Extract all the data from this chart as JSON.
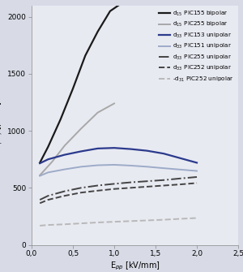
{
  "background_color": "#d8dbe6",
  "plot_bg_color": "#e8eaf2",
  "xlim": [
    0,
    2.5
  ],
  "ylim": [
    0,
    2100
  ],
  "xlabel": "E$_{pp}$ [kV/mm]",
  "ylabel": "d$_{(GS)}$ [pm/V]",
  "xticks": [
    0.0,
    0.5,
    1.0,
    1.5,
    2.0,
    2.5
  ],
  "yticks": [
    0,
    500,
    1000,
    1500,
    2000
  ],
  "xtick_labels": [
    "0,0",
    "0,5",
    "1,0",
    "1,5",
    "2,0",
    "2,5"
  ],
  "ytick_labels": [
    "0",
    "500",
    "1000",
    "1500",
    "2000"
  ],
  "series": [
    {
      "label": "d$_{15}$ PIC155 bipolar",
      "color": "#1a1a1a",
      "linestyle": "-",
      "linewidth": 1.6,
      "x": [
        0.1,
        0.2,
        0.35,
        0.5,
        0.65,
        0.8,
        0.95,
        1.05
      ],
      "y": [
        720,
        860,
        1100,
        1370,
        1660,
        1870,
        2050,
        2100
      ]
    },
    {
      "label": "d$_{15}$ PIC255 bipolar",
      "color": "#a8a8a8",
      "linestyle": "-",
      "linewidth": 1.4,
      "x": [
        0.1,
        0.25,
        0.4,
        0.6,
        0.8,
        1.0
      ],
      "y": [
        610,
        730,
        870,
        1020,
        1160,
        1240
      ]
    },
    {
      "label": "d$_{33}$ PIC153 unipolar",
      "color": "#2b3a8c",
      "linestyle": "-",
      "linewidth": 1.6,
      "x": [
        0.1,
        0.2,
        0.4,
        0.6,
        0.8,
        1.0,
        1.2,
        1.4,
        1.6,
        1.8,
        2.0
      ],
      "y": [
        715,
        750,
        790,
        820,
        845,
        850,
        840,
        825,
        800,
        760,
        720
      ]
    },
    {
      "label": "d$_{33}$ PIC151 unipolar",
      "color": "#9dabc8",
      "linestyle": "-",
      "linewidth": 1.4,
      "x": [
        0.1,
        0.2,
        0.4,
        0.6,
        0.8,
        1.0,
        1.2,
        1.4,
        1.6,
        1.8,
        2.0
      ],
      "y": [
        605,
        635,
        662,
        685,
        698,
        702,
        695,
        685,
        672,
        660,
        648
      ]
    },
    {
      "label": "d$_{33}$ PIC255 unipolar",
      "color": "#444444",
      "linestyle": "-.",
      "linewidth": 1.4,
      "x": [
        0.1,
        0.2,
        0.4,
        0.6,
        0.8,
        1.0,
        1.2,
        1.4,
        1.6,
        1.8,
        2.0
      ],
      "y": [
        395,
        430,
        470,
        500,
        520,
        535,
        548,
        558,
        568,
        582,
        595
      ]
    },
    {
      "label": "d$_{33}$ PIC252 unipolar",
      "color": "#444444",
      "linestyle": "--",
      "linewidth": 1.4,
      "x": [
        0.1,
        0.2,
        0.4,
        0.6,
        0.8,
        1.0,
        1.2,
        1.4,
        1.6,
        1.8,
        2.0
      ],
      "y": [
        365,
        395,
        430,
        458,
        475,
        490,
        500,
        510,
        520,
        530,
        542
      ]
    },
    {
      "label": "-d$_{31}$ PIC252 unipolar",
      "color": "#b8b8b8",
      "linestyle": "--",
      "linewidth": 1.4,
      "x": [
        0.1,
        0.2,
        0.4,
        0.6,
        0.8,
        1.0,
        1.2,
        1.4,
        1.6,
        1.8,
        2.0
      ],
      "y": [
        168,
        174,
        180,
        188,
        196,
        202,
        208,
        214,
        220,
        228,
        235
      ]
    }
  ],
  "legend": [
    {
      "label": "d$_{15}$ PIC155 bipolar",
      "color": "#1a1a1a",
      "linestyle": "-",
      "linewidth": 1.6
    },
    {
      "label": "d$_{15}$ PIC255 bipolar",
      "color": "#a8a8a8",
      "linestyle": "-",
      "linewidth": 1.4
    },
    {
      "label": "d$_{33}$ PIC153 unipolar",
      "color": "#2b3a8c",
      "linestyle": "-",
      "linewidth": 1.6
    },
    {
      "label": "d$_{33}$ PIC151 unipolar",
      "color": "#9dabc8",
      "linestyle": "-",
      "linewidth": 1.4
    },
    {
      "label": "d$_{33}$ PIC255 unipolar",
      "color": "#444444",
      "linestyle": "-.",
      "linewidth": 1.4
    },
    {
      "label": "d$_{33}$ PIC252 unipolar",
      "color": "#444444",
      "linestyle": "--",
      "linewidth": 1.4
    },
    {
      "label": "-d$_{31}$ PIC252 unipolar",
      "color": "#b8b8b8",
      "linestyle": "--",
      "linewidth": 1.4
    }
  ]
}
